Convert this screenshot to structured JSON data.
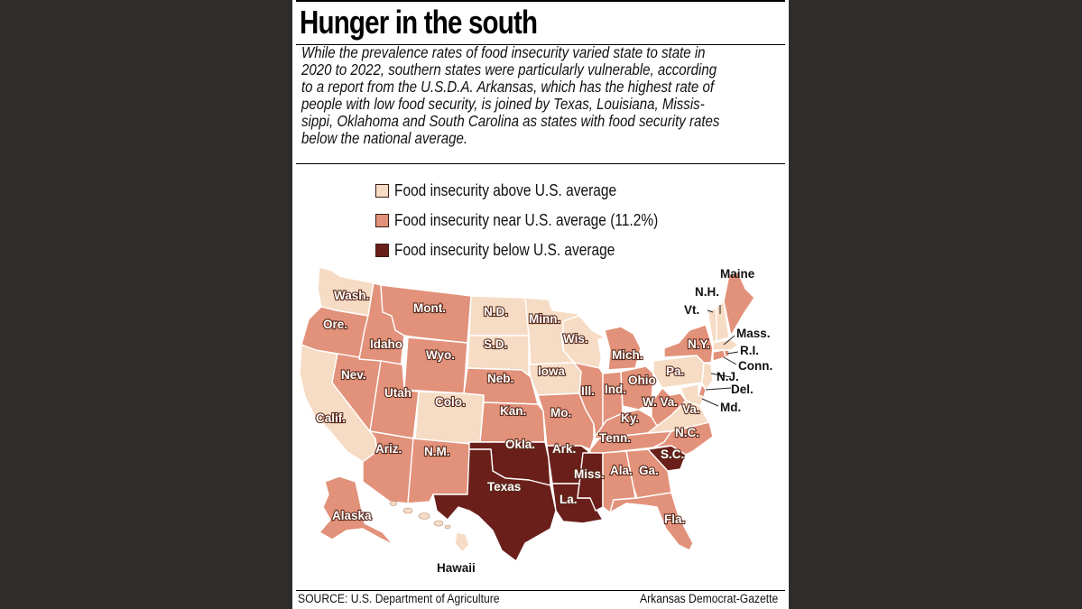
{
  "headline": "Hunger in the south",
  "intro_lines": [
    "While the prevalence rates of food insecurity varied state to state in",
    "2020 to 2022, southern states were particularly vulnerable, according",
    "to a report from the U.S.D.A. Arkansas, which has the highest rate of",
    "people with low food security, is joined by Texas, Louisiana, Missis-",
    "sippi, Oklahoma and South Carolina as states with food security rates",
    "below the national average."
  ],
  "legend": [
    {
      "label": "Food insecurity above U.S. average",
      "color": "#f6dcc4"
    },
    {
      "label": "Food insecurity near U.S. average (11.2%)",
      "color": "#e2917a"
    },
    {
      "label": "Food insecurity below U.S. average",
      "color": "#6b1f1a"
    }
  ],
  "colors": {
    "above": "#f6dcc4",
    "near": "#e2917a",
    "below": "#6b1f1a",
    "background": "#2f2d2c"
  },
  "states": [
    {
      "label": "Wash.",
      "category": "above"
    },
    {
      "label": "Ore.",
      "category": "near"
    },
    {
      "label": "Calif.",
      "category": "above"
    },
    {
      "label": "Nev.",
      "category": "near"
    },
    {
      "label": "Idaho",
      "category": "near"
    },
    {
      "label": "Mont.",
      "category": "near"
    },
    {
      "label": "Wyo.",
      "category": "near"
    },
    {
      "label": "Utah",
      "category": "near"
    },
    {
      "label": "Colo.",
      "category": "above"
    },
    {
      "label": "Ariz.",
      "category": "near"
    },
    {
      "label": "N.M.",
      "category": "near"
    },
    {
      "label": "N.D.",
      "category": "above"
    },
    {
      "label": "S.D.",
      "category": "above"
    },
    {
      "label": "Neb.",
      "category": "near"
    },
    {
      "label": "Kan.",
      "category": "near"
    },
    {
      "label": "Okla.",
      "category": "below"
    },
    {
      "label": "Texas",
      "category": "below"
    },
    {
      "label": "Minn.",
      "category": "above"
    },
    {
      "label": "Iowa",
      "category": "above"
    },
    {
      "label": "Mo.",
      "category": "near"
    },
    {
      "label": "Ark.",
      "category": "below"
    },
    {
      "label": "La.",
      "category": "below"
    },
    {
      "label": "Wis.",
      "category": "above"
    },
    {
      "label": "Ill.",
      "category": "near"
    },
    {
      "label": "Mich.",
      "category": "near"
    },
    {
      "label": "Ind.",
      "category": "near"
    },
    {
      "label": "Ohio",
      "category": "near"
    },
    {
      "label": "Ky.",
      "category": "near"
    },
    {
      "label": "Tenn.",
      "category": "near"
    },
    {
      "label": "Miss.",
      "category": "below"
    },
    {
      "label": "Ala.",
      "category": "near"
    },
    {
      "label": "Ga.",
      "category": "near"
    },
    {
      "label": "Fla.",
      "category": "near"
    },
    {
      "label": "S.C.",
      "category": "below"
    },
    {
      "label": "N.C.",
      "category": "near"
    },
    {
      "label": "Va.",
      "category": "above"
    },
    {
      "label": "W. Va.",
      "category": "near"
    },
    {
      "label": "Pa.",
      "category": "above"
    },
    {
      "label": "N.Y.",
      "category": "near"
    },
    {
      "label": "N.J.",
      "category": "above"
    },
    {
      "label": "Del.",
      "category": "near"
    },
    {
      "label": "Md.",
      "category": "above"
    },
    {
      "label": "Conn.",
      "category": "near"
    },
    {
      "label": "R.I.",
      "category": "near"
    },
    {
      "label": "Mass.",
      "category": "above"
    },
    {
      "label": "Vt.",
      "category": "above"
    },
    {
      "label": "N.H.",
      "category": "above"
    },
    {
      "label": "Maine",
      "category": "near"
    },
    {
      "label": "Alaska",
      "category": "near"
    },
    {
      "label": "Hawaii",
      "category": "above"
    }
  ],
  "source": "SOURCE: U.S. Department of Agriculture",
  "credit": "Arkansas Democrat-Gazette"
}
